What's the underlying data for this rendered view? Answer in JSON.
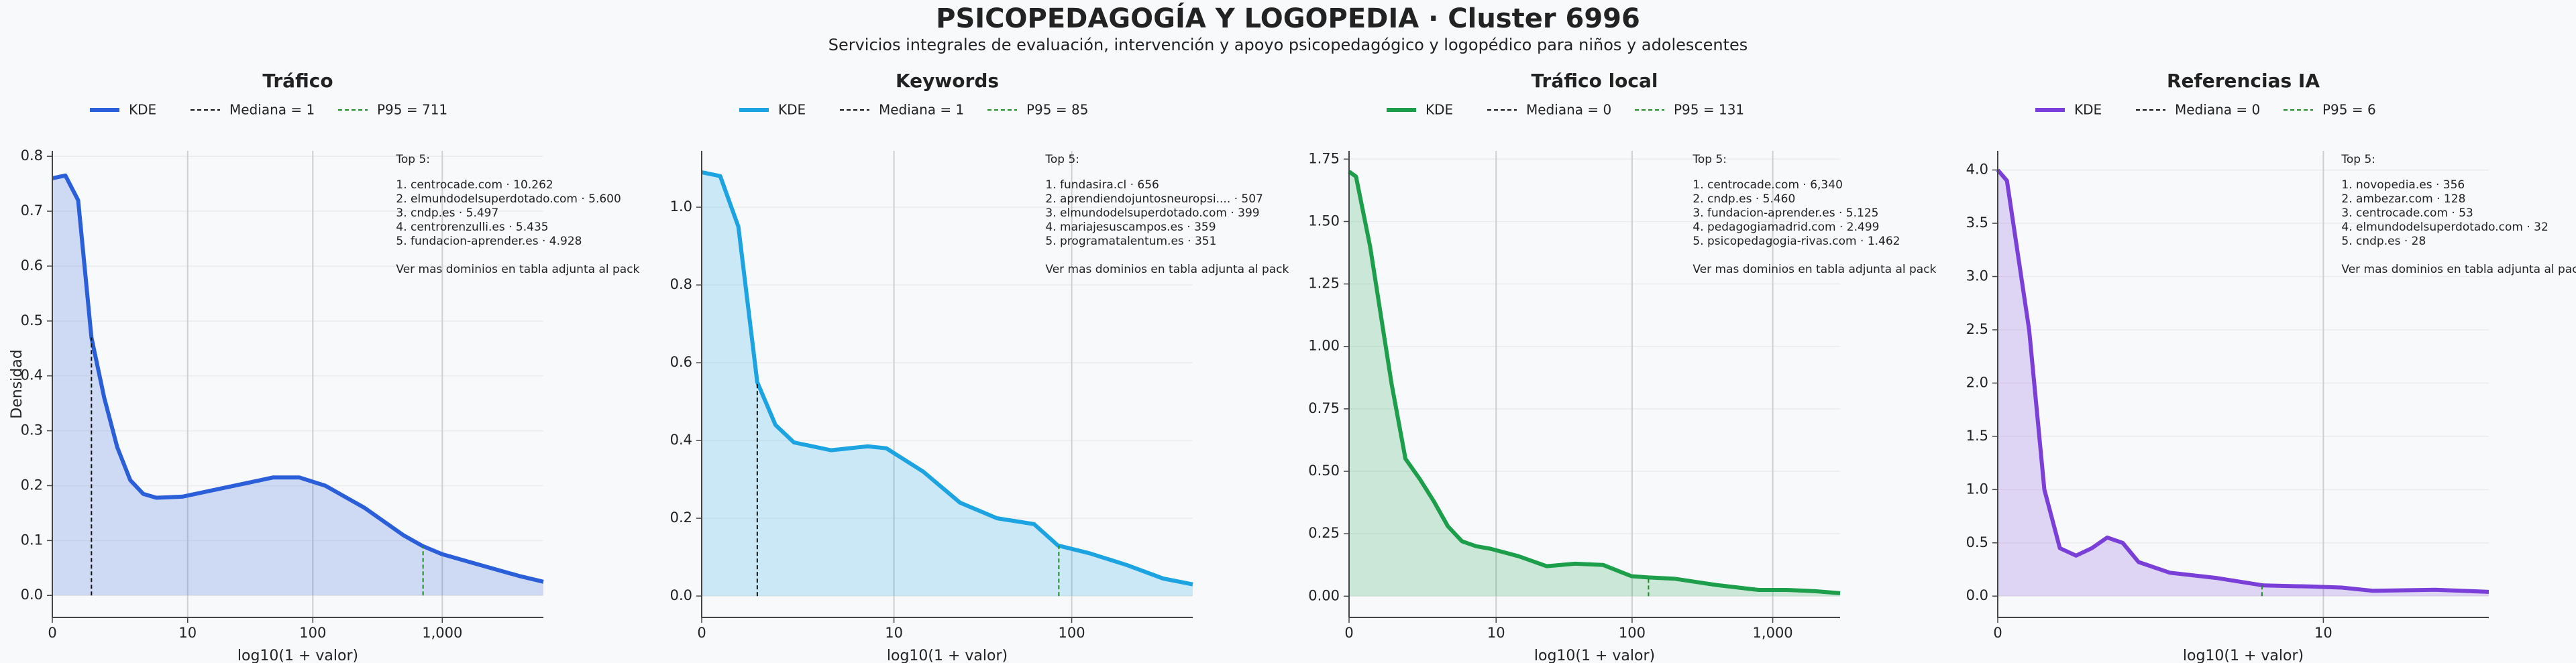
{
  "title": "PSICOPEDAGOGÍA Y LOGOPEDIA · Cluster 6996",
  "subtitle": "Servicios integrales de evaluación, intervención y apoyo psicopedagógico y logopédico para niños y adolescentes",
  "chart_data": [
    {
      "type": "area",
      "title": "Tráfico",
      "xlabel": "log10(1 + valor)",
      "ylabel": "Densidad",
      "xscale": "log1p",
      "grid": true,
      "xlim": [
        0,
        6000
      ],
      "xticks": [
        0,
        10,
        100,
        {
          "value": 1000,
          "label": "1,000"
        }
      ],
      "ylim": [
        -0.04,
        0.81
      ],
      "yticks": [
        {
          "value": 0,
          "label": "0.0"
        },
        0.1,
        0.2,
        0.3,
        0.4,
        0.5,
        0.6,
        0.7,
        0.8
      ],
      "series": [
        {
          "name": "KDE",
          "color": "#2b5fd9",
          "x": [
            0,
            0.26,
            0.58,
            1,
            1.51,
            2.16,
            2.98,
            4.01,
            5.31,
            9,
            14.85,
            30.6,
            49.1,
            78.4,
            125,
            250,
            500,
            707,
            1000,
            1994,
            3980,
            6000
          ],
          "values": [
            0.76,
            0.765,
            0.72,
            0.47,
            0.36,
            0.27,
            0.21,
            0.185,
            0.178,
            0.18,
            0.19,
            0.205,
            0.215,
            0.215,
            0.2,
            0.16,
            0.11,
            0.09,
            0.075,
            0.055,
            0.035,
            0.025
          ]
        }
      ],
      "reference_lines": [
        {
          "name": "Mediana = 1",
          "value": 1,
          "color": "#111111"
        },
        {
          "name": "P95 = 711",
          "value": 711,
          "color": "#1f8a2a"
        }
      ],
      "annotation": {
        "title": "Top 5:",
        "lines": [
          "1. centrocade.com · 10.262",
          "2. elmundodelsuperdotado.com · 5.600",
          "3. cndp.es · 5.497",
          "4. centrorenzulli.es · 5.435",
          "5. fundacion-aprender.es · 4.928"
        ],
        "footer": "Ver mas dominios en tabla adjunta al pack"
      }
    },
    {
      "type": "area",
      "title": "Keywords",
      "xlabel": "log10(1 + valor)",
      "xscale": "log1p",
      "grid": true,
      "xlim": [
        0,
        456
      ],
      "xticks": [
        0,
        10,
        100
      ],
      "ylim": [
        -0.055,
        1.145
      ],
      "yticks": [
        {
          "value": 0,
          "label": "0.0"
        },
        0.2,
        0.4,
        0.6,
        0.8,
        {
          "value": 1,
          "label": "1.0"
        }
      ],
      "series": [
        {
          "name": "KDE",
          "color": "#1ba3e2",
          "x": [
            0,
            0.26,
            0.58,
            1,
            1.51,
            2.16,
            4.01,
            6.94,
            9,
            14.85,
            24.1,
            38.8,
            62.1,
            84,
            125,
            199,
            315,
            456
          ],
          "values": [
            1.09,
            1.08,
            0.95,
            0.55,
            0.44,
            0.395,
            0.375,
            0.385,
            0.38,
            0.32,
            0.24,
            0.2,
            0.185,
            0.13,
            0.11,
            0.08,
            0.045,
            0.03
          ]
        }
      ],
      "reference_lines": [
        {
          "name": "Mediana = 1",
          "value": 1,
          "color": "#111111"
        },
        {
          "name": "P95 = 85",
          "value": 85,
          "color": "#1f8a2a"
        }
      ],
      "annotation": {
        "title": "Top 5:",
        "lines": [
          "1. fundasira.cl · 656",
          "2. aprendiendojuntosneuropsi.... · 507",
          "3. elmundodelsuperdotado.com · 399",
          "4. mariajesuscampos.es · 359",
          "5. programatalentum.es · 351"
        ],
        "footer": "Ver mas dominios en tabla adjunta al pack"
      }
    },
    {
      "type": "area",
      "title": "Tráfico local",
      "xlabel": "log10(1 + valor)",
      "xscale": "log1p",
      "grid": true,
      "xlim": [
        0,
        3000
      ],
      "xticks": [
        0,
        10,
        100,
        {
          "value": 1000,
          "label": "1,000"
        }
      ],
      "ylim": [
        -0.085,
        1.783
      ],
      "yticks": [
        {
          "value": 0,
          "label": "0.00"
        },
        0.25,
        {
          "value": 0.5,
          "label": "0.50"
        },
        0.75,
        {
          "value": 1,
          "label": "1.00"
        },
        1.25,
        {
          "value": 1.5,
          "label": "1.50"
        },
        1.75
      ],
      "series": [
        {
          "name": "KDE",
          "color": "#1c9e4b",
          "x": [
            0,
            0.12,
            0.41,
            1,
            1.51,
            2.16,
            2.98,
            4.01,
            5.31,
            6.94,
            9,
            14.85,
            24.1,
            38.8,
            62.1,
            99,
            131,
            199,
            397,
            793,
            1258,
            1994,
            3000
          ],
          "values": [
            1.7,
            1.68,
            1.4,
            0.85,
            0.55,
            0.47,
            0.38,
            0.28,
            0.22,
            0.2,
            0.19,
            0.16,
            0.12,
            0.13,
            0.125,
            0.08,
            0.075,
            0.07,
            0.045,
            0.025,
            0.025,
            0.02,
            0.012
          ]
        }
      ],
      "reference_lines": [
        {
          "name": "Mediana = 0",
          "value": 0,
          "color": "#111111"
        },
        {
          "name": "P95 = 131",
          "value": 131,
          "color": "#1f8a2a"
        }
      ],
      "annotation": {
        "title": "Top 5:",
        "lines": [
          "1. centrocade.com · 6,340",
          "2. cndp.es · 5.460",
          "3. fundacion-aprender.es · 5.125",
          "4. pedagogiamadrid.com · 2.499",
          "5. psicopedagogia-rivas.com · 1.462"
        ],
        "footer": "Ver mas dominios en tabla adjunta al pack"
      }
    },
    {
      "type": "area",
      "title": "Referencias IA",
      "xlabel": "log10(1 + valor)",
      "xscale": "log1p",
      "grid": true,
      "xlim": [
        0,
        36.2
      ],
      "xticks": [
        0,
        10
      ],
      "ylim": [
        -0.2,
        4.18
      ],
      "yticks": [
        {
          "value": 0,
          "label": "0.0"
        },
        0.5,
        {
          "value": 1,
          "label": "1.0"
        },
        1.5,
        {
          "value": 2,
          "label": "2.0"
        },
        2.5,
        {
          "value": 3,
          "label": "3.0"
        },
        3.5,
        {
          "value": 4,
          "label": "4.0"
        }
      ],
      "series": [
        {
          "name": "KDE",
          "color": "#7b3fd9",
          "x": [
            0,
            0.07,
            0.26,
            0.41,
            0.58,
            0.78,
            1,
            1.24,
            1.51,
            1.82,
            2.55,
            4.01,
            6.08,
            9,
            11.6,
            14.85,
            24.1,
            36.2
          ],
          "values": [
            4.0,
            3.9,
            2.5,
            1.0,
            0.45,
            0.38,
            0.45,
            0.55,
            0.5,
            0.32,
            0.22,
            0.17,
            0.1,
            0.09,
            0.08,
            0.05,
            0.06,
            0.04
          ]
        }
      ],
      "reference_lines": [
        {
          "name": "Mediana = 0",
          "value": 0,
          "color": "#111111"
        },
        {
          "name": "P95 = 6",
          "value": 6,
          "color": "#1f8a2a"
        }
      ],
      "annotation": {
        "title": "Top 5:",
        "lines": [
          "1. novopedia.es · 356",
          "2. ambezar.com · 128",
          "3. centrocade.com · 53",
          "4. elmundodelsuperdotado.com · 32",
          "5. cndp.es · 28"
        ],
        "footer": "Ver mas dominios en tabla adjunta al pack"
      }
    }
  ]
}
